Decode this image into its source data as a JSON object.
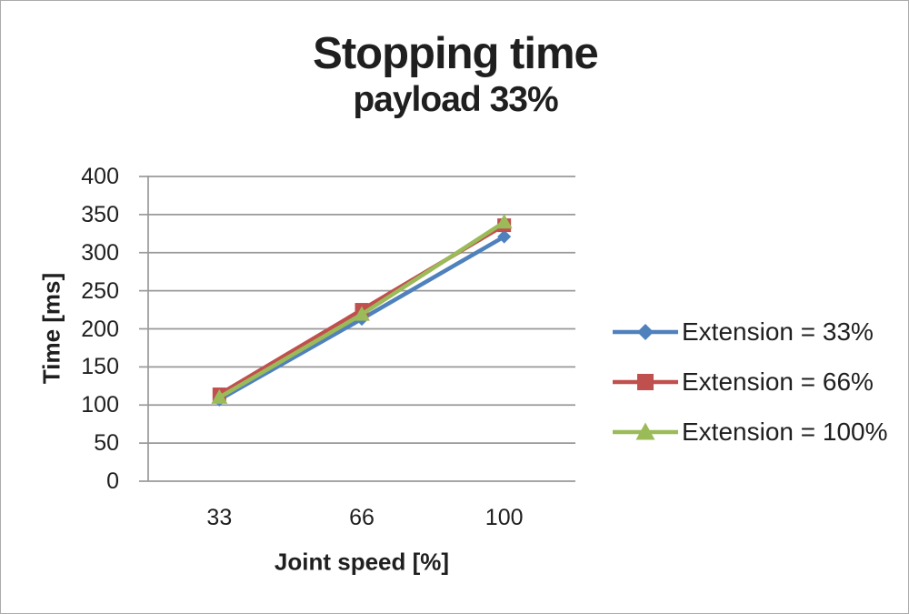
{
  "chart_data": {
    "type": "line",
    "title": "Stopping time",
    "subtitle": "payload 33%",
    "xlabel": "Joint speed [%]",
    "ylabel": "Time [ms]",
    "categories": [
      "33",
      "66",
      "100"
    ],
    "ylim": [
      0,
      400
    ],
    "ytick_step": 50,
    "yticks": [
      400,
      350,
      300,
      250,
      200,
      150,
      100,
      50,
      0
    ],
    "grid": "horizontal",
    "legend_position": "right",
    "series": [
      {
        "name": "Extension = 33%",
        "marker": "diamond",
        "color": "#4F81BD",
        "values": [
          107,
          213,
          321
        ]
      },
      {
        "name": "Extension = 66%",
        "marker": "square",
        "color": "#C0504D",
        "values": [
          114,
          225,
          336
        ]
      },
      {
        "name": "Extension = 100%",
        "marker": "triangle",
        "color": "#9BBB59",
        "values": [
          110,
          219,
          340
        ]
      }
    ]
  },
  "colors": {
    "grid": "#999999",
    "axis": "#999999",
    "text": "#1f1f1f",
    "border": "#ababab",
    "background": "#ffffff"
  }
}
